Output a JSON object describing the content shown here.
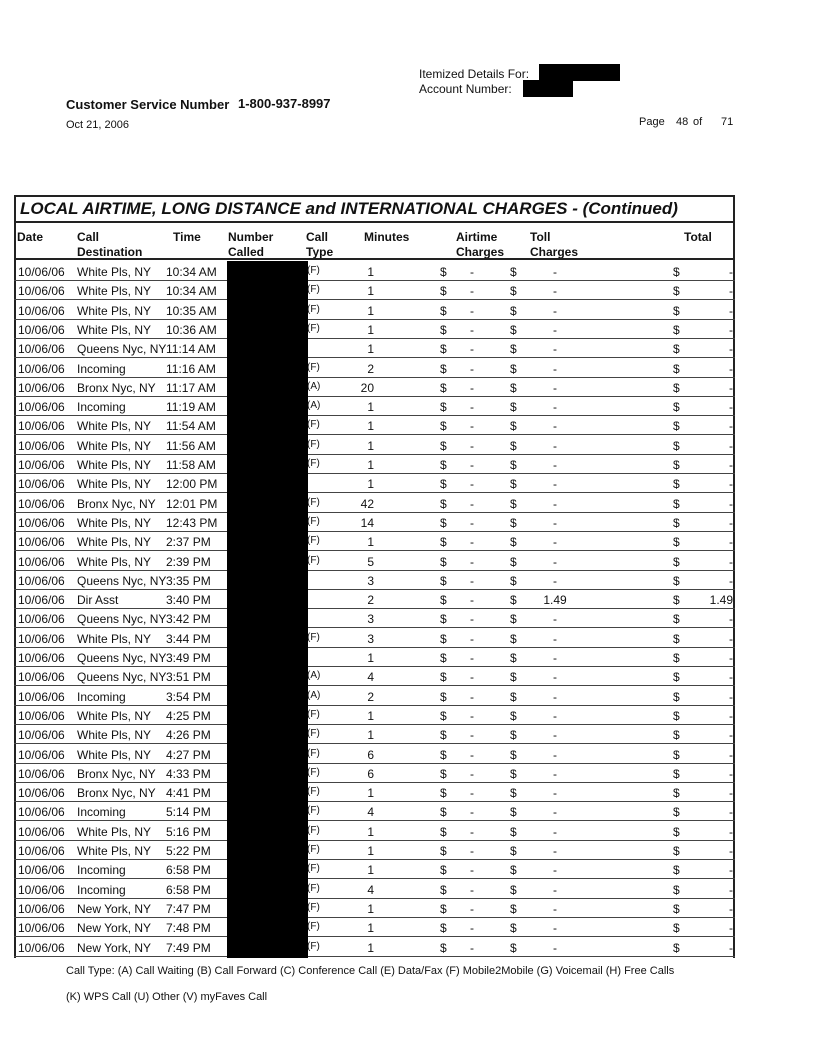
{
  "header": {
    "itemized_label": "Itemized Details For:",
    "account_label": "Account Number:",
    "customer_service_label": "Customer Service Number",
    "customer_service_number": "1-800-937-8997",
    "date": "Oct 21, 2006",
    "page_label": "Page",
    "page_number": "48",
    "of_label": "of",
    "page_total": "71"
  },
  "table": {
    "title": "LOCAL AIRTIME, LONG DISTANCE and INTERNATIONAL CHARGES  - (Continued)",
    "columns": {
      "date": "Date",
      "dest1": "Call",
      "dest2": "Destination",
      "time": "Time",
      "num1": "Number",
      "num2": "Called",
      "type1": "Call",
      "type2": "Type",
      "minutes": "Minutes",
      "air1": "Airtime",
      "air2": "Charges",
      "toll1": "Toll",
      "toll2": "Charges",
      "total": "Total"
    },
    "rows": [
      {
        "date": "10/06/06",
        "dest": "White Pls, NY",
        "time": "10:34 AM",
        "type": "(F)",
        "minutes": "1",
        "airtime": "-",
        "toll": "-",
        "total": "-"
      },
      {
        "date": "10/06/06",
        "dest": "White Pls, NY",
        "time": "10:34 AM",
        "type": "(F)",
        "minutes": "1",
        "airtime": "-",
        "toll": "-",
        "total": "-"
      },
      {
        "date": "10/06/06",
        "dest": "White Pls, NY",
        "time": "10:35 AM",
        "type": "(F)",
        "minutes": "1",
        "airtime": "-",
        "toll": "-",
        "total": "-"
      },
      {
        "date": "10/06/06",
        "dest": "White Pls, NY",
        "time": "10:36 AM",
        "type": "(F)",
        "minutes": "1",
        "airtime": "-",
        "toll": "-",
        "total": "-"
      },
      {
        "date": "10/06/06",
        "dest": "Queens Nyc, NY",
        "time": "11:14 AM",
        "type": "",
        "minutes": "1",
        "airtime": "-",
        "toll": "-",
        "total": "-"
      },
      {
        "date": "10/06/06",
        "dest": "Incoming",
        "time": "11:16 AM",
        "type": "(F)",
        "minutes": "2",
        "airtime": "-",
        "toll": "-",
        "total": "-"
      },
      {
        "date": "10/06/06",
        "dest": "Bronx Nyc, NY",
        "time": "11:17 AM",
        "type": "(A)",
        "minutes": "20",
        "airtime": "-",
        "toll": "-",
        "total": "-"
      },
      {
        "date": "10/06/06",
        "dest": "Incoming",
        "time": "11:19 AM",
        "type": "(A)",
        "minutes": "1",
        "airtime": "-",
        "toll": "-",
        "total": "-"
      },
      {
        "date": "10/06/06",
        "dest": "White Pls, NY",
        "time": "11:54 AM",
        "type": "(F)",
        "minutes": "1",
        "airtime": "-",
        "toll": "-",
        "total": "-"
      },
      {
        "date": "10/06/06",
        "dest": "White Pls, NY",
        "time": "11:56 AM",
        "type": "(F)",
        "minutes": "1",
        "airtime": "-",
        "toll": "-",
        "total": "-"
      },
      {
        "date": "10/06/06",
        "dest": "White Pls, NY",
        "time": "11:58 AM",
        "type": "(F)",
        "minutes": "1",
        "airtime": "-",
        "toll": "-",
        "total": "-"
      },
      {
        "date": "10/06/06",
        "dest": "White Pls, NY",
        "time": "12:00 PM",
        "type": "",
        "minutes": "1",
        "airtime": "-",
        "toll": "-",
        "total": "-"
      },
      {
        "date": "10/06/06",
        "dest": "Bronx Nyc, NY",
        "time": "12:01 PM",
        "type": "(F)",
        "minutes": "42",
        "airtime": "-",
        "toll": "-",
        "total": "-"
      },
      {
        "date": "10/06/06",
        "dest": "White Pls, NY",
        "time": "12:43 PM",
        "type": "(F)",
        "minutes": "14",
        "airtime": "-",
        "toll": "-",
        "total": "-"
      },
      {
        "date": "10/06/06",
        "dest": "White Pls, NY",
        "time": "2:37 PM",
        "type": "(F)",
        "minutes": "1",
        "airtime": "-",
        "toll": "-",
        "total": "-"
      },
      {
        "date": "10/06/06",
        "dest": "White Pls, NY",
        "time": "2:39 PM",
        "type": "(F)",
        "minutes": "5",
        "airtime": "-",
        "toll": "-",
        "total": "-"
      },
      {
        "date": "10/06/06",
        "dest": "Queens Nyc, NY",
        "time": "3:35 PM",
        "type": "",
        "minutes": "3",
        "airtime": "-",
        "toll": "-",
        "total": "-"
      },
      {
        "date": "10/06/06",
        "dest": "Dir Asst",
        "time": "3:40 PM",
        "type": "",
        "minutes": "2",
        "airtime": "-",
        "toll": "1.49",
        "total": "1.49"
      },
      {
        "date": "10/06/06",
        "dest": "Queens Nyc, NY",
        "time": "3:42 PM",
        "type": "",
        "minutes": "3",
        "airtime": "-",
        "toll": "-",
        "total": "-"
      },
      {
        "date": "10/06/06",
        "dest": "White Pls, NY",
        "time": "3:44 PM",
        "type": "(F)",
        "minutes": "3",
        "airtime": "-",
        "toll": "-",
        "total": "-"
      },
      {
        "date": "10/06/06",
        "dest": "Queens Nyc, NY",
        "time": "3:49 PM",
        "type": "",
        "minutes": "1",
        "airtime": "-",
        "toll": "-",
        "total": "-"
      },
      {
        "date": "10/06/06",
        "dest": "Queens Nyc, NY",
        "time": "3:51 PM",
        "type": "(A)",
        "minutes": "4",
        "airtime": "-",
        "toll": "-",
        "total": "-"
      },
      {
        "date": "10/06/06",
        "dest": "Incoming",
        "time": "3:54 PM",
        "type": "(A)",
        "minutes": "2",
        "airtime": "-",
        "toll": "-",
        "total": "-"
      },
      {
        "date": "10/06/06",
        "dest": "White Pls, NY",
        "time": "4:25 PM",
        "type": "(F)",
        "minutes": "1",
        "airtime": "-",
        "toll": "-",
        "total": "-"
      },
      {
        "date": "10/06/06",
        "dest": "White Pls, NY",
        "time": "4:26 PM",
        "type": "(F)",
        "minutes": "1",
        "airtime": "-",
        "toll": "-",
        "total": "-"
      },
      {
        "date": "10/06/06",
        "dest": "White Pls, NY",
        "time": "4:27 PM",
        "type": "(F)",
        "minutes": "6",
        "airtime": "-",
        "toll": "-",
        "total": "-"
      },
      {
        "date": "10/06/06",
        "dest": "Bronx Nyc, NY",
        "time": "4:33 PM",
        "type": "(F)",
        "minutes": "6",
        "airtime": "-",
        "toll": "-",
        "total": "-"
      },
      {
        "date": "10/06/06",
        "dest": "Bronx Nyc, NY",
        "time": "4:41 PM",
        "type": "(F)",
        "minutes": "1",
        "airtime": "-",
        "toll": "-",
        "total": "-"
      },
      {
        "date": "10/06/06",
        "dest": "Incoming",
        "time": "5:14 PM",
        "type": "(F)",
        "minutes": "4",
        "airtime": "-",
        "toll": "-",
        "total": "-"
      },
      {
        "date": "10/06/06",
        "dest": "White Pls, NY",
        "time": "5:16 PM",
        "type": "(F)",
        "minutes": "1",
        "airtime": "-",
        "toll": "-",
        "total": "-"
      },
      {
        "date": "10/06/06",
        "dest": "White Pls, NY",
        "time": "5:22 PM",
        "type": "(F)",
        "minutes": "1",
        "airtime": "-",
        "toll": "-",
        "total": "-"
      },
      {
        "date": "10/06/06",
        "dest": "Incoming",
        "time": "6:58 PM",
        "type": "(F)",
        "minutes": "1",
        "airtime": "-",
        "toll": "-",
        "total": "-"
      },
      {
        "date": "10/06/06",
        "dest": "Incoming",
        "time": "6:58 PM",
        "type": "(F)",
        "minutes": "4",
        "airtime": "-",
        "toll": "-",
        "total": "-"
      },
      {
        "date": "10/06/06",
        "dest": "New York, NY",
        "time": "7:47 PM",
        "type": "(F)",
        "minutes": "1",
        "airtime": "-",
        "toll": "-",
        "total": "-"
      },
      {
        "date": "10/06/06",
        "dest": "New York, NY",
        "time": "7:48 PM",
        "type": "(F)",
        "minutes": "1",
        "airtime": "-",
        "toll": "-",
        "total": "-"
      },
      {
        "date": "10/06/06",
        "dest": "New York, NY",
        "time": "7:49 PM",
        "type": "(F)",
        "minutes": "1",
        "airtime": "-",
        "toll": "-",
        "total": "-"
      }
    ],
    "currency_symbol": "$"
  },
  "footer": {
    "legend_line1": "Call Type: (A) Call Waiting (B) Call Forward (C) Conference Call (E) Data/Fax (F) Mobile2Mobile (G) Voicemail (H) Free Calls",
    "legend_line2": "(K) WPS Call (U) Other (V) myFaves Call"
  }
}
